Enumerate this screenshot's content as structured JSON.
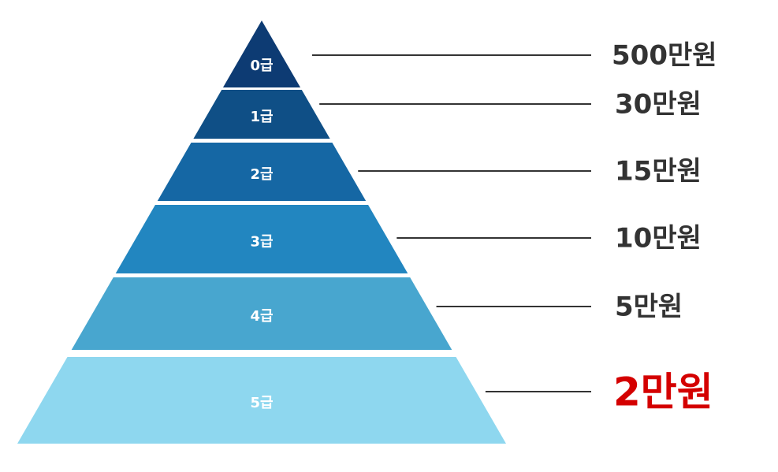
{
  "levels": [
    {
      "grade": "0급",
      "amount": "500만원",
      "color": "#0d3b73",
      "highlight": false
    },
    {
      "grade": "1급",
      "amount": "30만원",
      "color": "#0f4f86",
      "highlight": false
    },
    {
      "grade": "2급",
      "amount": "15만원",
      "color": "#1567a4",
      "highlight": false
    },
    {
      "grade": "3급",
      "amount": "10만원",
      "color": "#2286c0",
      "highlight": false
    },
    {
      "grade": "4급",
      "amount": "5만원",
      "color": "#48a6cf",
      "highlight": false
    },
    {
      "grade": "5급",
      "amount": "2만원",
      "color": "#8ed7ef",
      "highlight": true
    }
  ],
  "colors": {
    "text": "#333333",
    "highlight": "#d40000",
    "line": "#333333",
    "level_text": "#ffffff"
  }
}
